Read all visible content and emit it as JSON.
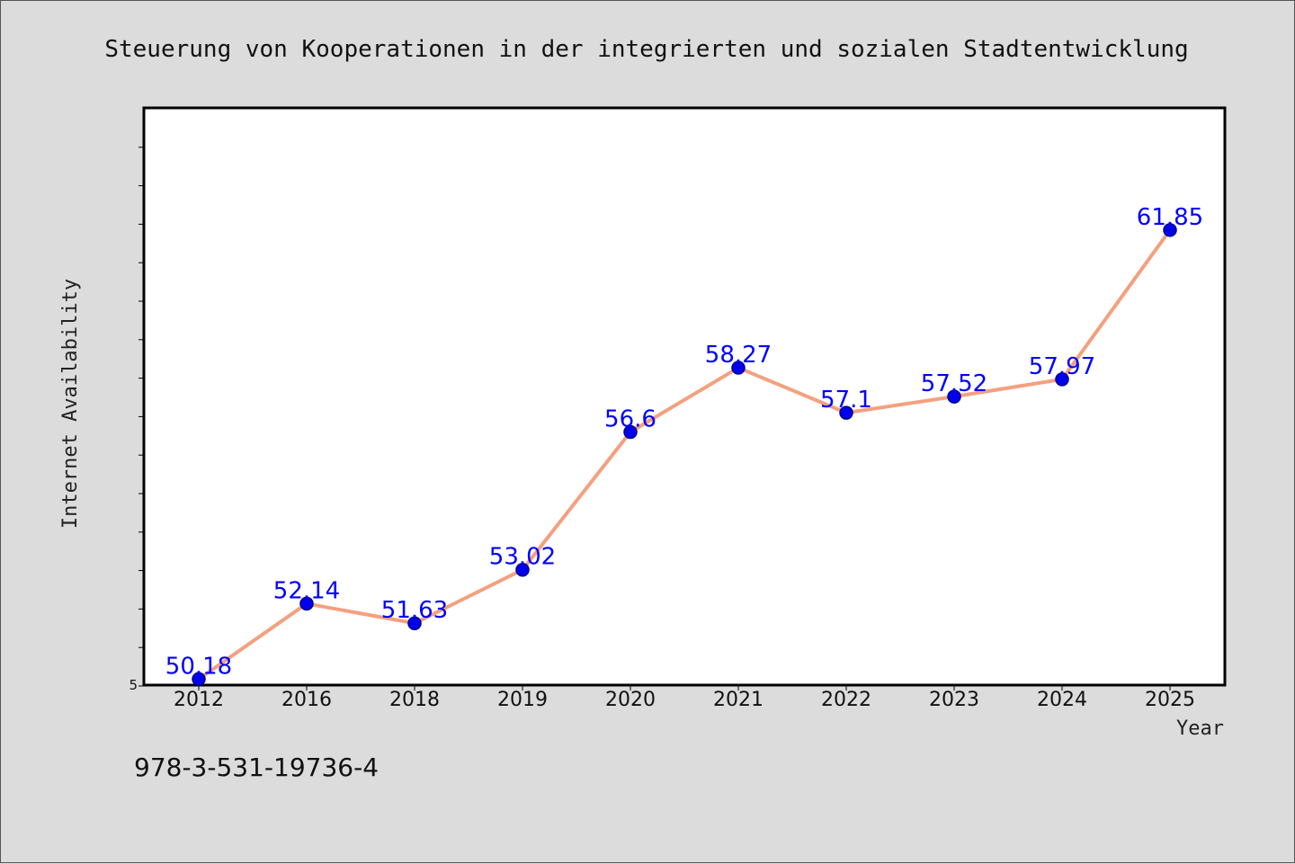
{
  "chart_data": {
    "type": "line",
    "title": "Steuerung von Kooperationen in der integrierten und sozialen Stadtentwicklung",
    "xlabel": "Year",
    "ylabel": "Internet Availability",
    "categories": [
      "2012",
      "2016",
      "2018",
      "2019",
      "2020",
      "2021",
      "2022",
      "2023",
      "2024",
      "2025"
    ],
    "series": [
      {
        "values": [
          50.18,
          52.14,
          51.63,
          53.02,
          56.6,
          58.27,
          57.1,
          57.52,
          57.97,
          61.85
        ],
        "data_labels": [
          "50.18",
          "52.14",
          "51.63",
          "53.02",
          "56.6",
          "58.27",
          "57.1",
          "57.52",
          "57.97",
          "61.85"
        ],
        "line_color": "#f4a07e",
        "marker_color": "#0000ee",
        "label_color": "#0000ff"
      }
    ],
    "ylim": [
      50,
      65
    ],
    "y_ticks_shown": [
      "5"
    ],
    "grid": false,
    "legend": "none"
  },
  "footnote": "978-3-531-19736-4",
  "colors": {
    "background": "#dcdcdc",
    "plot_background": "#ffffff",
    "axis": "#000000"
  }
}
